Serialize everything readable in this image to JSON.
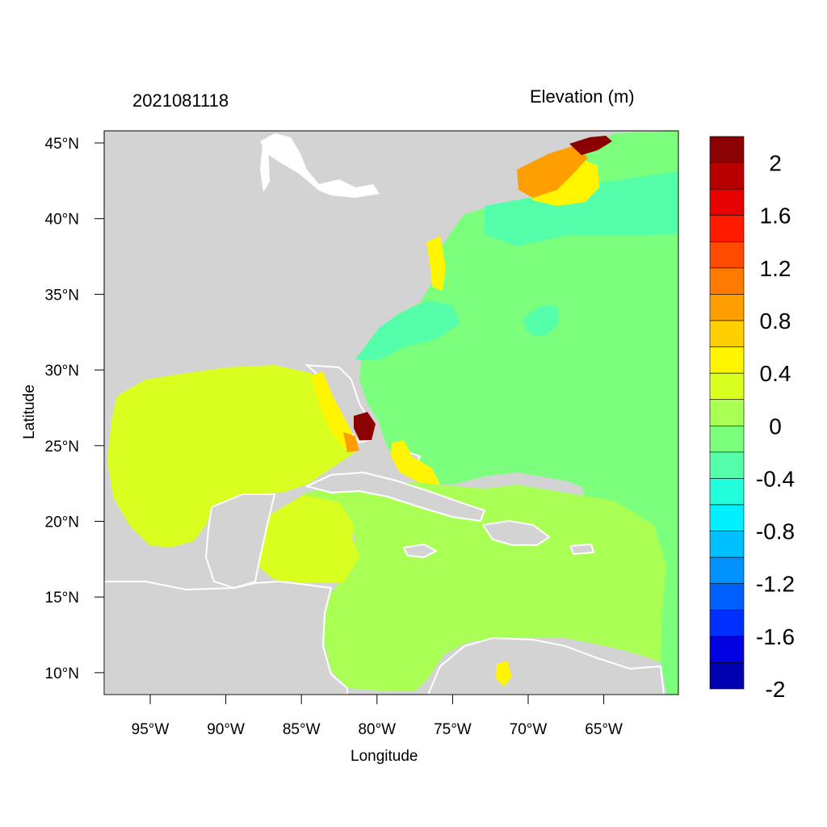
{
  "plot": {
    "timestamp": "2021081118",
    "variable_title": "Elevation (m)",
    "x_axis_label": "Longitude",
    "y_axis_label": "Latitude",
    "x_ticks": [
      "95°W",
      "90°W",
      "85°W",
      "80°W",
      "75°W",
      "70°W",
      "65°W"
    ],
    "y_ticks": [
      "45°N",
      "40°N",
      "35°N",
      "30°N",
      "25°N",
      "20°N",
      "15°N",
      "10°N"
    ]
  },
  "colorbar": {
    "labels": [
      "2",
      "1.6",
      "1.2",
      "0.8",
      "0.4",
      "0",
      "-0.4",
      "-0.8",
      "-1.2",
      "-1.6",
      "-2"
    ],
    "colors": [
      "#8b0000",
      "#b90000",
      "#e60000",
      "#ff1a00",
      "#ff4a00",
      "#ff7a00",
      "#ff9e00",
      "#ffcf00",
      "#fff500",
      "#d9ff20",
      "#aaff55",
      "#7cff7c",
      "#55ffaa",
      "#22ffdd",
      "#00f0ff",
      "#00c0ff",
      "#0090ff",
      "#0060ff",
      "#0030ff",
      "#0000e0",
      "#0000b0"
    ]
  },
  "map_colors": {
    "land": "#d3d3d3",
    "water_line": "#ffffff",
    "atlantic": "#7cff7c",
    "shelf": "#55ffaa",
    "gulf": "#d9ff20",
    "caribbean": "#aaff55",
    "surge_yellow": "#fff500",
    "surge_orange": "#ff9e00",
    "surge_red": "#8b0000"
  }
}
